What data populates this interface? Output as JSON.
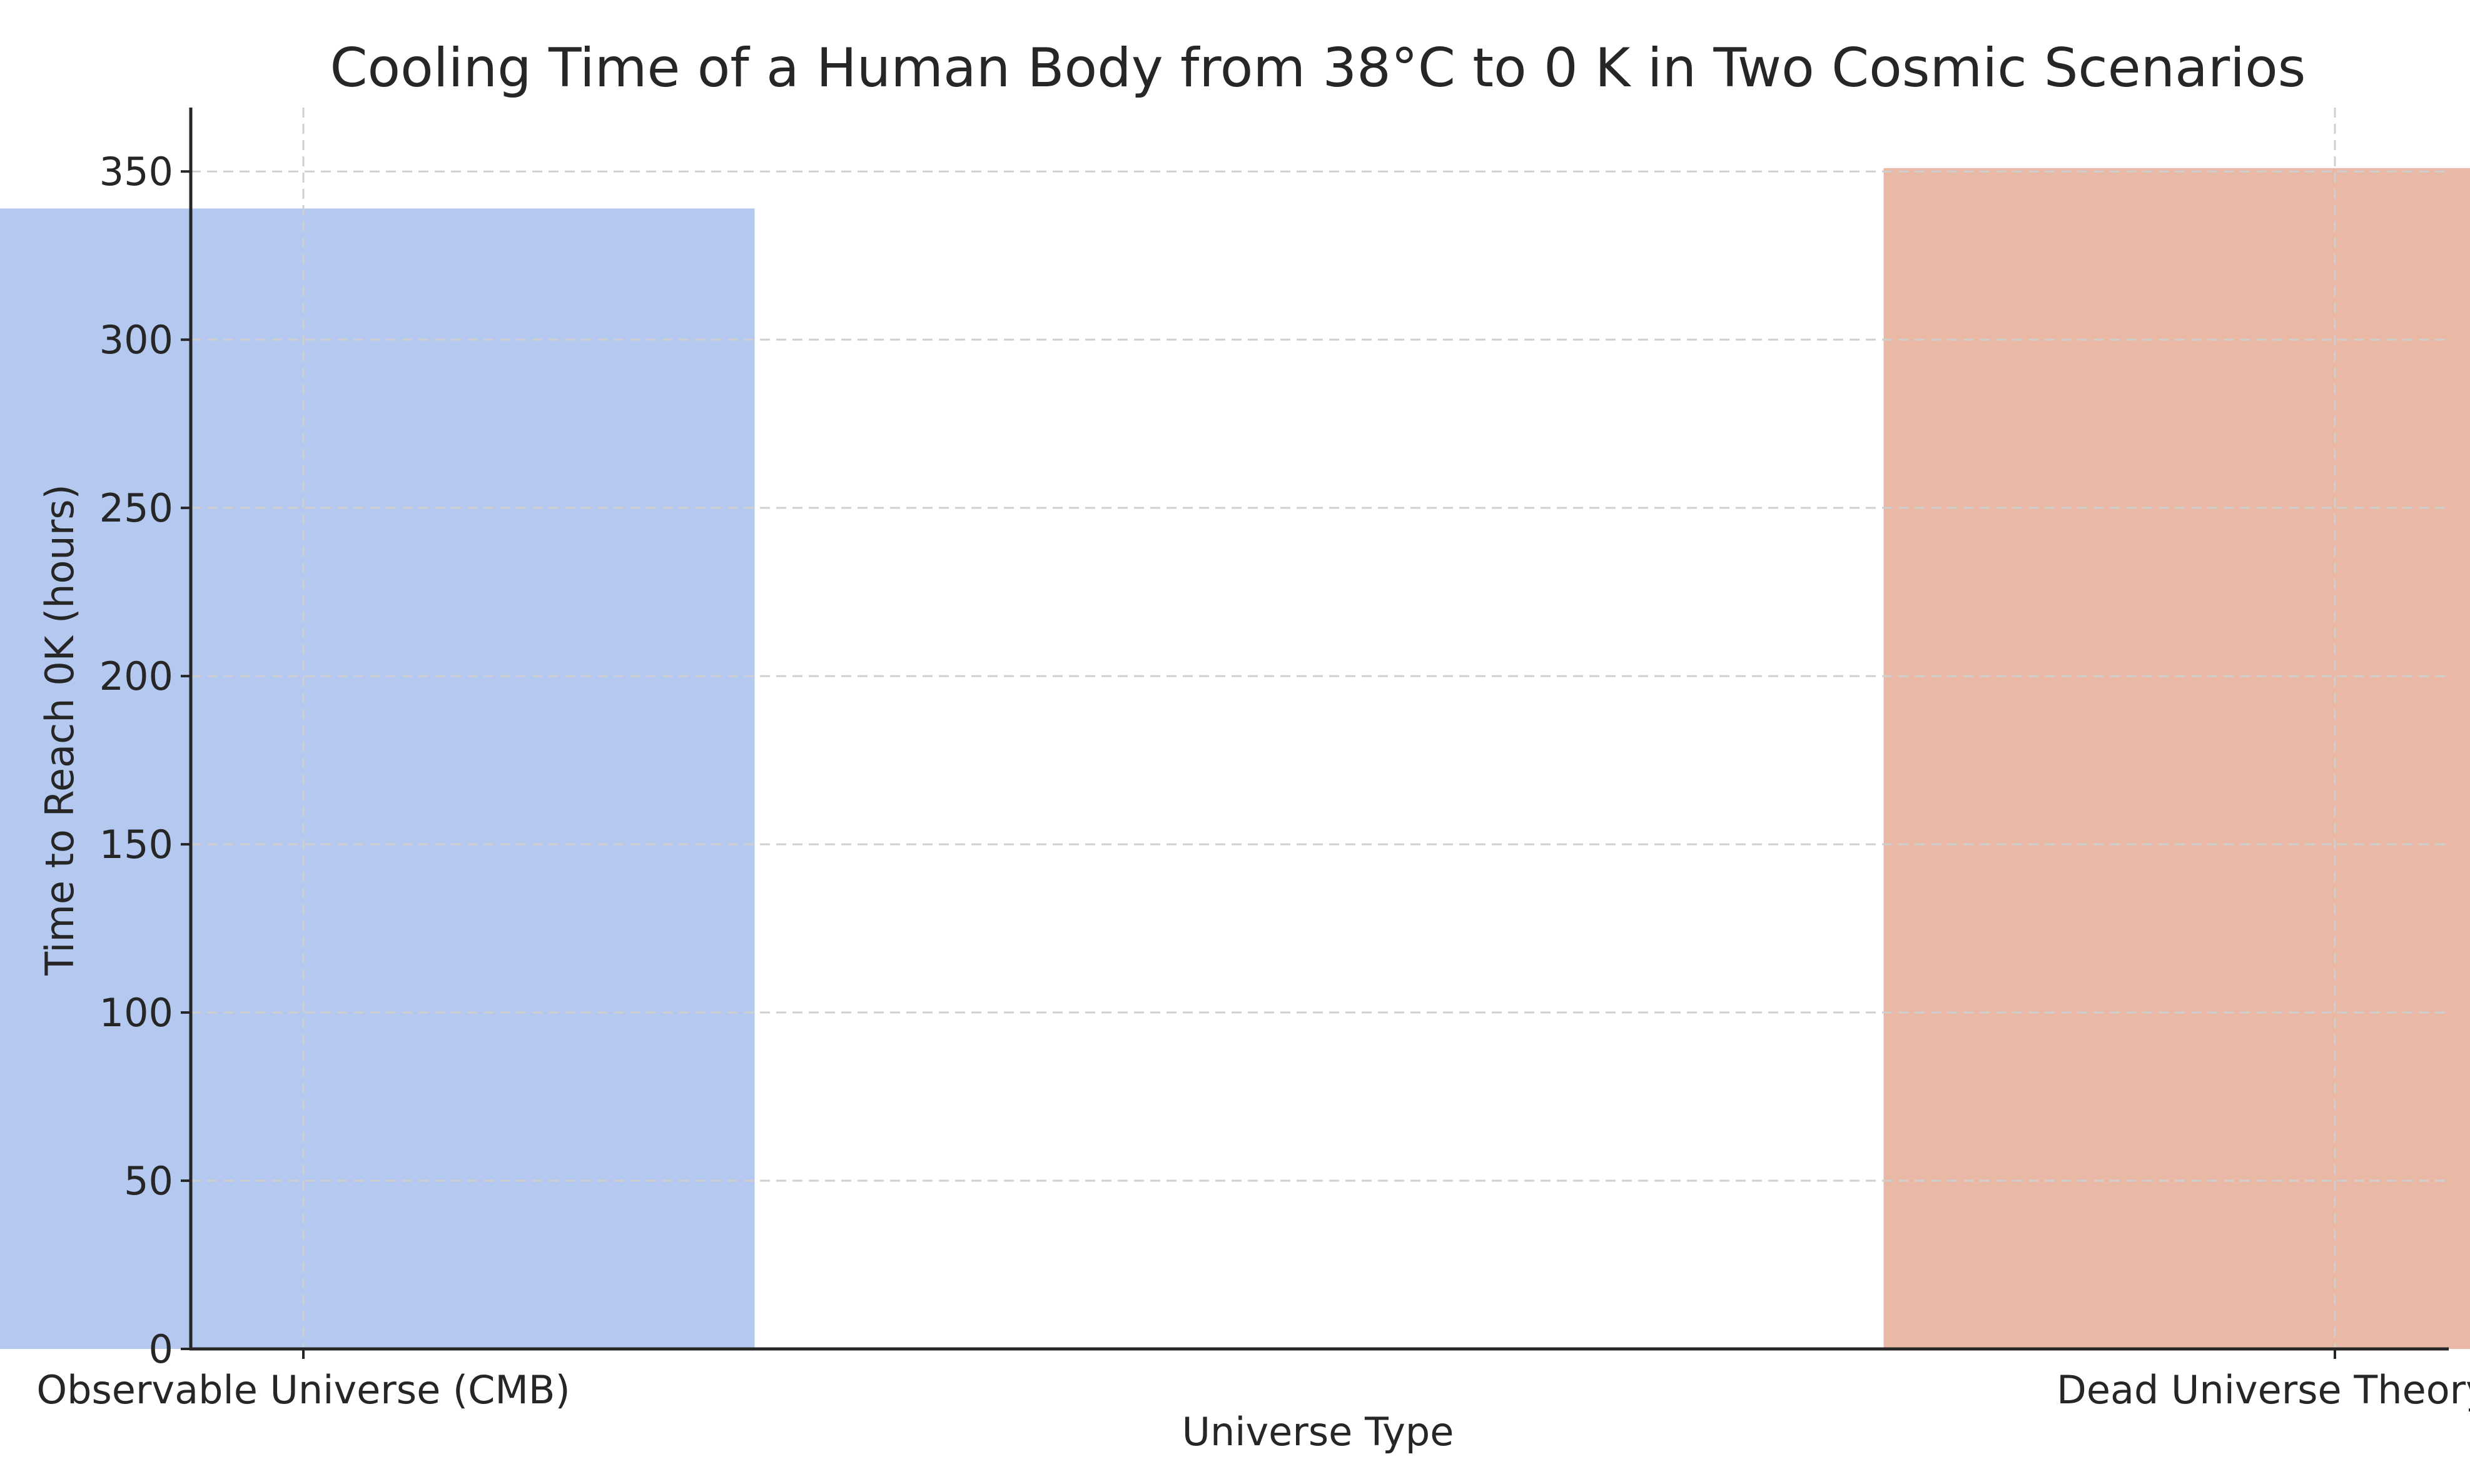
{
  "chart_data": {
    "type": "bar",
    "title": "Cooling Time of a Human Body from 38°C to 0 K in Two Cosmic Scenarios",
    "xlabel": "Universe Type",
    "ylabel": "Time to Reach 0K (hours)",
    "categories": [
      "Observable Universe (CMB)",
      "Dead Universe Theory (DUT)"
    ],
    "values": [
      339,
      351
    ],
    "colors": [
      "#b4c8f0",
      "#e9b9a5"
    ],
    "ylim": [
      0,
      369
    ],
    "yticks": [
      0,
      50,
      100,
      150,
      200,
      250,
      300,
      350
    ],
    "grid": true,
    "legend": "none"
  }
}
